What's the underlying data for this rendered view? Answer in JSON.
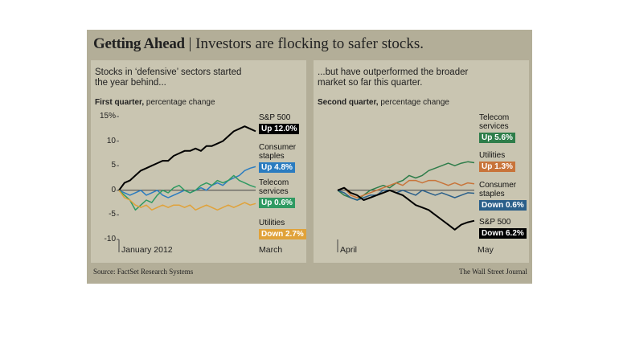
{
  "title_bold": "Getting Ahead",
  "title": "| Investors are flocking to safer stocks.",
  "source": "Source: FactSet Research Systems",
  "credit": "The Wall Street Journal",
  "chart_data": [
    {
      "type": "line",
      "subtitle": "Stocks in ‘defensive’ sectors started the year behind...",
      "axis_title": "First quarter,",
      "axis_unit": "percentage change",
      "xlabels": [
        "January 2012",
        "March"
      ],
      "ylim": [
        -10,
        15
      ],
      "yticks": [
        {
          "value": 15,
          "label": "15%"
        },
        10,
        5,
        0,
        -5,
        -10
      ],
      "series": [
        {
          "name": "S&P 500",
          "color": "#000000",
          "end_label": "Up 12.0%",
          "values": [
            0,
            1.5,
            2,
            3,
            4,
            4.5,
            5,
            5.5,
            6,
            6,
            7,
            7.5,
            8,
            8,
            8.5,
            8,
            9,
            9,
            9.5,
            10,
            11,
            12,
            12.5,
            13,
            12.5,
            12.0
          ]
        },
        {
          "name": "Consumer staples",
          "color": "#2b7cc0",
          "end_label": "Up 4.8%",
          "values": [
            0,
            -0.5,
            -1,
            -0.5,
            0,
            -1,
            -0.5,
            0,
            -1,
            -1.5,
            -1,
            -0.5,
            0,
            -0.5,
            0,
            0.5,
            0,
            1,
            1.5,
            1,
            2,
            2.5,
            3,
            4,
            4.5,
            4.8
          ]
        },
        {
          "name": "Telecom services",
          "color": "#2f9a62",
          "end_label": "Up 0.6%",
          "values": [
            0,
            -1,
            -2,
            -4,
            -3,
            -2,
            -2.5,
            -1,
            0,
            -0.5,
            0.5,
            1,
            0,
            -0.5,
            0,
            1,
            1.5,
            1,
            2,
            1.5,
            2,
            3,
            2,
            1.5,
            1,
            0.6
          ]
        },
        {
          "name": "Utilities",
          "color": "#e0a23a",
          "end_label": "Down 2.7%",
          "values": [
            0,
            -1.5,
            -2,
            -3,
            -3.5,
            -3,
            -4,
            -3.5,
            -3,
            -3.5,
            -3,
            -3,
            -3.5,
            -3,
            -4,
            -3.5,
            -3,
            -3.5,
            -4,
            -3.5,
            -3,
            -3.5,
            -3,
            -2.5,
            -3,
            -2.7
          ]
        }
      ]
    },
    {
      "type": "line",
      "subtitle": "...but have outperformed the broader market so far this quarter.",
      "axis_title": "Second quarter,",
      "axis_unit": "percentage change",
      "xlabels": [
        "April",
        "May"
      ],
      "ylim": [
        -10,
        15
      ],
      "series": [
        {
          "name": "Telecom services",
          "color": "#2e7d4a",
          "end_label": "Up 5.6%",
          "values": [
            0,
            -1,
            -1.5,
            -2,
            -1,
            0,
            0.5,
            1,
            0.5,
            1.5,
            2,
            3,
            2.5,
            3,
            4,
            4.5,
            5,
            5.5,
            5,
            5.5,
            5.8,
            5.6
          ]
        },
        {
          "name": "Utilities",
          "color": "#c8743a",
          "end_label": "Up 1.3%",
          "values": [
            0,
            0.5,
            -1,
            -1.5,
            -1,
            -0.5,
            0,
            0.5,
            1,
            1.5,
            1,
            2,
            2,
            1.5,
            2,
            2,
            1.5,
            1,
            1.5,
            1,
            1.5,
            1.3
          ]
        },
        {
          "name": "Consumer staples",
          "color": "#2a5f8a",
          "end_label": "Down 0.6%",
          "values": [
            0,
            -0.5,
            -1.5,
            -2,
            -1.5,
            -1,
            -1,
            0,
            0,
            -0.5,
            0,
            -0.5,
            -1,
            0,
            -0.5,
            -1,
            -0.5,
            -1,
            -1.5,
            -1,
            -0.5,
            -0.6
          ]
        },
        {
          "name": "S&P 500",
          "color": "#000000",
          "end_label": "Down 6.2%",
          "values": [
            0,
            0.5,
            -0.5,
            -1,
            -2,
            -1.5,
            -1,
            -0.5,
            0,
            -0.5,
            -1,
            -2,
            -3,
            -3.5,
            -4,
            -5,
            -6,
            -7,
            -8,
            -7,
            -6.5,
            -6.2
          ]
        }
      ]
    }
  ]
}
